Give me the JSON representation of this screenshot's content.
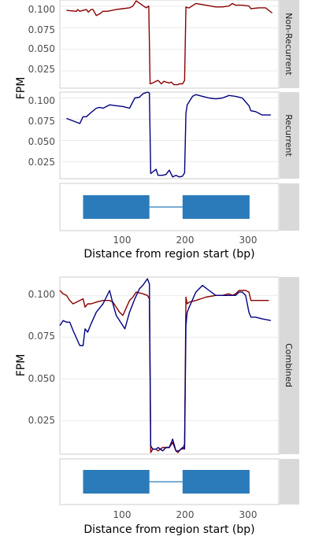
{
  "chart_data": [
    {
      "type": "line",
      "facet": "Non-Recurrent",
      "ylabel": "FPM",
      "yticks": [
        "0.025",
        "0.050",
        "0.075",
        "0.100"
      ],
      "ylim": [
        0.005,
        0.107
      ],
      "xlim": [
        15,
        345
      ],
      "colors": {
        "Non-Recurrent": "#8b0000"
      },
      "series": [
        {
          "color": "#8b0000",
          "x": [
            25,
            40,
            42,
            45,
            55,
            58,
            62,
            65,
            70,
            75,
            80,
            87,
            100,
            110,
            120,
            125,
            130,
            145,
            149,
            151,
            155,
            160,
            163,
            168,
            172,
            175,
            180,
            183,
            187,
            193,
            195,
            200,
            203,
            205,
            208,
            210,
            220,
            235,
            250,
            260,
            270,
            275,
            280,
            290,
            300,
            303,
            315,
            325,
            335
          ],
          "y": [
            0.095,
            0.094,
            0.096,
            0.094,
            0.096,
            0.093,
            0.096,
            0.096,
            0.089,
            0.091,
            0.094,
            0.094,
            0.096,
            0.097,
            0.098,
            0.1,
            0.106,
            0.098,
            0.1,
            0.01,
            0.011,
            0.013,
            0.014,
            0.01,
            0.013,
            0.012,
            0.011,
            0.012,
            0.009,
            0.009,
            0.01,
            0.01,
            0.014,
            0.099,
            0.098,
            0.098,
            0.103,
            0.101,
            0.099,
            0.099,
            0.1,
            0.103,
            0.101,
            0.101,
            0.1,
            0.097,
            0.098,
            0.098,
            0.092
          ]
        }
      ]
    },
    {
      "type": "line",
      "facet": "Recurrent",
      "ylabel": "FPM",
      "yticks": [
        "0.025",
        "0.050",
        "0.075",
        "0.100"
      ],
      "ylim": [
        0.005,
        0.107
      ],
      "xlim": [
        15,
        345
      ],
      "colors": {
        "Recurrent": "#000080"
      },
      "series": [
        {
          "color": "#000080",
          "x": [
            25,
            45,
            50,
            55,
            62,
            70,
            75,
            80,
            90,
            100,
            110,
            120,
            128,
            135,
            140,
            147,
            150,
            152,
            160,
            163,
            170,
            175,
            180,
            185,
            190,
            195,
            200,
            203,
            205,
            207,
            215,
            220,
            230,
            240,
            250,
            260,
            270,
            280,
            290,
            300,
            303,
            310,
            320,
            333
          ],
          "y": [
            0.076,
            0.07,
            0.078,
            0.078,
            0.083,
            0.088,
            0.089,
            0.088,
            0.092,
            0.091,
            0.09,
            0.088,
            0.1,
            0.101,
            0.105,
            0.107,
            0.106,
            0.011,
            0.016,
            0.009,
            0.009,
            0.01,
            0.015,
            0.007,
            0.009,
            0.007,
            0.008,
            0.012,
            0.082,
            0.092,
            0.102,
            0.104,
            0.102,
            0.1,
            0.099,
            0.1,
            0.103,
            0.102,
            0.1,
            0.091,
            0.085,
            0.084,
            0.08,
            0.08
          ]
        }
      ]
    },
    {
      "type": "gene-track",
      "xlabel": "Distance from region start (bp)",
      "xticks": [
        "100",
        "200",
        "300"
      ],
      "xlim": [
        15,
        345
      ],
      "color": "#2b7bba",
      "exons": [
        [
          50,
          150
        ],
        [
          200,
          301
        ]
      ],
      "intron": [
        150,
        200
      ]
    },
    {
      "type": "line",
      "facet": "Combined",
      "ylabel": "FPM",
      "yticks": [
        "0.025",
        "0.050",
        "0.075",
        "0.100"
      ],
      "ylim": [
        0.005,
        0.111
      ],
      "xlim": [
        15,
        345
      ],
      "series": [
        {
          "color": "#8b0000",
          "x": [
            15,
            20,
            25,
            30,
            35,
            45,
            50,
            53,
            57,
            62,
            70,
            80,
            90,
            95,
            100,
            105,
            110,
            120,
            125,
            130,
            140,
            147,
            150,
            152,
            155,
            160,
            163,
            170,
            180,
            185,
            190,
            193,
            197,
            200,
            203,
            205,
            207,
            210,
            220,
            235,
            250,
            260,
            270,
            275,
            280,
            285,
            290,
            295,
            300,
            303,
            315,
            330
          ],
          "y": [
            0.103,
            0.101,
            0.1,
            0.097,
            0.095,
            0.097,
            0.098,
            0.093,
            0.095,
            0.095,
            0.096,
            0.097,
            0.097,
            0.096,
            0.093,
            0.09,
            0.088,
            0.097,
            0.099,
            0.102,
            0.101,
            0.1,
            0.098,
            0.006,
            0.008,
            0.008,
            0.007,
            0.009,
            0.009,
            0.012,
            0.007,
            0.006,
            0.008,
            0.008,
            0.011,
            0.099,
            0.095,
            0.096,
            0.097,
            0.099,
            0.1,
            0.1,
            0.101,
            0.1,
            0.101,
            0.103,
            0.103,
            0.103,
            0.102,
            0.097,
            0.097,
            0.097
          ]
        },
        {
          "color": "#000080",
          "x": [
            15,
            20,
            25,
            30,
            35,
            45,
            50,
            53,
            57,
            62,
            70,
            80,
            90,
            95,
            100,
            105,
            113,
            120,
            128,
            135,
            140,
            147,
            150,
            152,
            155,
            160,
            163,
            170,
            175,
            180,
            185,
            190,
            195,
            200,
            203,
            205,
            207,
            210,
            220,
            230,
            240,
            250,
            260,
            270,
            280,
            285,
            290,
            295,
            300,
            303,
            310,
            320,
            333
          ],
          "y": [
            0.082,
            0.085,
            0.084,
            0.084,
            0.079,
            0.07,
            0.07,
            0.08,
            0.078,
            0.083,
            0.09,
            0.095,
            0.103,
            0.095,
            0.088,
            0.085,
            0.08,
            0.09,
            0.098,
            0.104,
            0.106,
            0.11,
            0.107,
            0.01,
            0.008,
            0.008,
            0.009,
            0.007,
            0.009,
            0.009,
            0.014,
            0.007,
            0.007,
            0.009,
            0.008,
            0.082,
            0.09,
            0.093,
            0.102,
            0.106,
            0.103,
            0.1,
            0.1,
            0.1,
            0.1,
            0.102,
            0.102,
            0.1,
            0.09,
            0.087,
            0.087,
            0.086,
            0.085
          ]
        }
      ]
    },
    {
      "type": "gene-track",
      "xlabel": "Distance from region start (bp)",
      "xticks": [
        "100",
        "200",
        "300"
      ],
      "xlim": [
        15,
        345
      ],
      "color": "#2b7bba",
      "exons": [
        [
          50,
          150
        ],
        [
          200,
          301
        ]
      ],
      "intron": [
        150,
        200
      ]
    }
  ]
}
